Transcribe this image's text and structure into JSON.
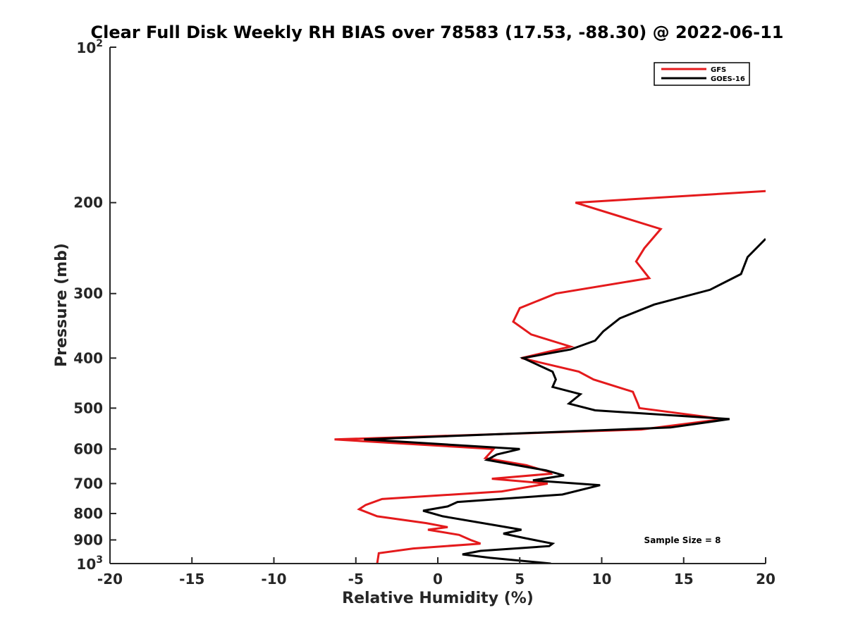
{
  "chart_data": {
    "type": "line",
    "title": "Clear Full Disk Weekly RH BIAS over 78583 (17.53, -88.30) @ 2022-06-11",
    "xlabel": "Relative Humidity (%)",
    "ylabel": "Pressure (mb)",
    "xlim": [
      -20,
      20
    ],
    "ylim": [
      100,
      1000
    ],
    "y_scale": "log",
    "y_reversed": true,
    "grid": false,
    "legend_position": "top-right",
    "x_ticks": [
      "-20",
      "-15",
      "-10",
      "-5",
      "0",
      "5",
      "10",
      "15",
      "20"
    ],
    "y_ticks": [
      {
        "value": 100,
        "base": "10",
        "exp": "2"
      },
      {
        "value": 200,
        "label": "200"
      },
      {
        "value": 300,
        "label": "300"
      },
      {
        "value": 400,
        "label": "400"
      },
      {
        "value": 500,
        "label": "500"
      },
      {
        "value": 600,
        "label": "600"
      },
      {
        "value": 700,
        "label": "700"
      },
      {
        "value": 800,
        "label": "800"
      },
      {
        "value": 900,
        "label": "900"
      },
      {
        "value": 1000,
        "base": "10",
        "exp": "3"
      }
    ],
    "annotation": "Sample Size = 8",
    "series": [
      {
        "name": "GFS",
        "color": "#e41a1c",
        "points": [
          [
            20.0,
            190
          ],
          [
            8.4,
            200
          ],
          [
            13.6,
            225
          ],
          [
            12.6,
            245
          ],
          [
            12.1,
            260
          ],
          [
            12.9,
            280
          ],
          [
            7.2,
            300
          ],
          [
            5.0,
            320
          ],
          [
            4.6,
            340
          ],
          [
            5.7,
            360
          ],
          [
            8.1,
            380
          ],
          [
            5.1,
            400
          ],
          [
            8.6,
            425
          ],
          [
            9.5,
            440
          ],
          [
            11.9,
            465
          ],
          [
            12.2,
            490
          ],
          [
            12.3,
            500
          ],
          [
            17.4,
            525
          ],
          [
            12.4,
            550
          ],
          [
            -6.3,
            575
          ],
          [
            3.4,
            600
          ],
          [
            2.9,
            625
          ],
          [
            5.4,
            645
          ],
          [
            6.8,
            665
          ],
          [
            6.9,
            670
          ],
          [
            3.3,
            685
          ],
          [
            6.7,
            700
          ],
          [
            3.9,
            725
          ],
          [
            -3.4,
            750
          ],
          [
            -4.4,
            770
          ],
          [
            -4.8,
            785
          ],
          [
            -3.7,
            810
          ],
          [
            -0.7,
            835
          ],
          [
            0.6,
            850
          ],
          [
            -0.6,
            860
          ],
          [
            1.3,
            880
          ],
          [
            2.0,
            900
          ],
          [
            2.6,
            915
          ],
          [
            -1.5,
            935
          ],
          [
            -3.6,
            955
          ],
          [
            -3.7,
            1000
          ]
        ]
      },
      {
        "name": "GOES-16",
        "color": "#000000",
        "points": [
          [
            20.0,
            235
          ],
          [
            18.9,
            255
          ],
          [
            18.5,
            275
          ],
          [
            16.6,
            295
          ],
          [
            13.2,
            315
          ],
          [
            11.1,
            335
          ],
          [
            10.1,
            355
          ],
          [
            9.6,
            370
          ],
          [
            8.1,
            385
          ],
          [
            5.2,
            400
          ],
          [
            7.0,
            425
          ],
          [
            7.2,
            440
          ],
          [
            7.0,
            455
          ],
          [
            8.7,
            470
          ],
          [
            8.0,
            490
          ],
          [
            9.6,
            505
          ],
          [
            17.8,
            525
          ],
          [
            14.2,
            545
          ],
          [
            -4.5,
            575
          ],
          [
            5.0,
            600
          ],
          [
            3.6,
            615
          ],
          [
            3.0,
            630
          ],
          [
            6.6,
            660
          ],
          [
            7.7,
            675
          ],
          [
            5.8,
            690
          ],
          [
            9.9,
            705
          ],
          [
            7.6,
            735
          ],
          [
            1.2,
            760
          ],
          [
            0.6,
            775
          ],
          [
            -0.9,
            790
          ],
          [
            0.3,
            810
          ],
          [
            3.7,
            845
          ],
          [
            5.1,
            860
          ],
          [
            4.0,
            875
          ],
          [
            5.1,
            890
          ],
          [
            7.0,
            915
          ],
          [
            6.8,
            925
          ],
          [
            2.6,
            945
          ],
          [
            1.5,
            960
          ],
          [
            3.2,
            975
          ],
          [
            6.9,
            1000
          ]
        ]
      }
    ]
  }
}
